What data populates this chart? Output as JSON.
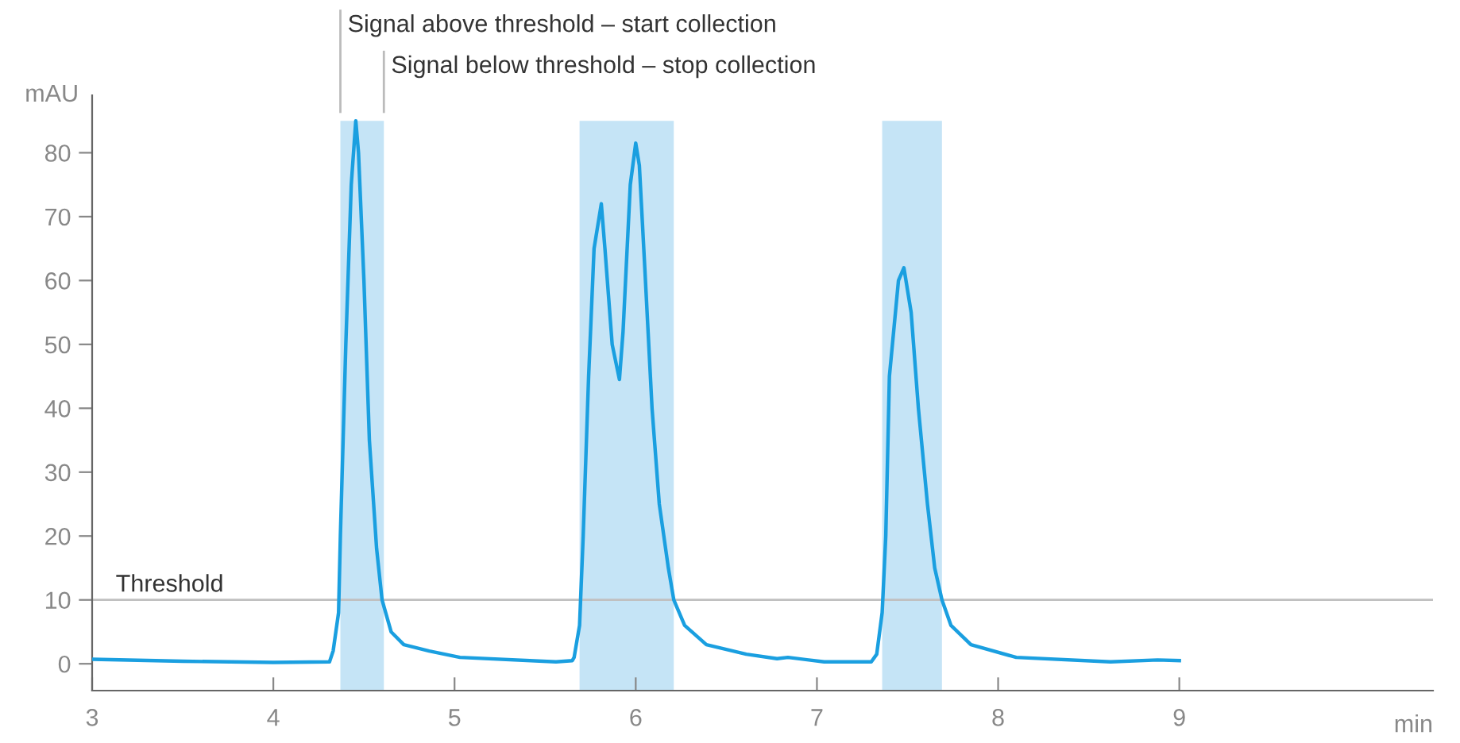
{
  "chart_data": {
    "type": "line",
    "xlabel": "min",
    "ylabel": "mAU",
    "x": [
      3.0,
      3.5,
      4.0,
      4.31,
      4.33,
      4.36,
      4.37,
      4.4,
      4.43,
      4.455,
      4.47,
      4.5,
      4.53,
      4.57,
      4.6,
      4.65,
      4.72,
      4.86,
      5.03,
      5.56,
      5.65,
      5.66,
      5.69,
      5.71,
      5.74,
      5.77,
      5.81,
      5.83,
      5.87,
      5.91,
      5.93,
      5.97,
      6.0,
      6.02,
      6.05,
      6.09,
      6.13,
      6.18,
      6.21,
      6.27,
      6.39,
      6.61,
      6.78,
      6.84,
      7.04,
      7.3,
      7.33,
      7.36,
      7.38,
      7.4,
      7.45,
      7.48,
      7.52,
      7.56,
      7.61,
      7.65,
      7.69,
      7.74,
      7.85,
      8.1,
      8.62,
      8.88,
      9.0
    ],
    "series": [
      {
        "color": "#1a9fe0",
        "values": [
          0.7,
          0.4,
          0.2,
          0.3,
          2,
          8,
          20,
          50,
          75,
          85,
          80,
          60,
          35,
          18,
          10,
          5,
          3,
          2,
          1,
          0.3,
          0.5,
          1,
          6,
          20,
          45,
          65,
          72,
          65,
          50,
          44.5,
          52,
          75,
          81.5,
          78,
          62,
          40,
          25,
          15,
          10,
          6,
          3,
          1.5,
          0.8,
          1,
          0.3,
          0.3,
          1.5,
          8,
          20,
          45,
          60,
          62,
          55,
          40,
          25,
          15,
          10,
          6,
          3,
          1,
          0.3,
          0.6,
          0.5
        ]
      }
    ],
    "xlim": [
      3,
      10.4
    ],
    "xticks": [
      3,
      4,
      5,
      6,
      7,
      8,
      9
    ],
    "ylim": [
      -4.2,
      89
    ],
    "yticks": [
      0,
      10,
      20,
      30,
      40,
      50,
      60,
      70,
      80
    ],
    "ref_lines": [
      {
        "axis": "y",
        "value": 10,
        "label": "Threshold",
        "color": "#c0c0c0"
      }
    ],
    "bands": [
      {
        "axis": "x",
        "from": 4.37,
        "to": 4.61,
        "color": "#c5e4f6"
      },
      {
        "axis": "x",
        "from": 5.69,
        "to": 6.21,
        "color": "#c5e4f6"
      },
      {
        "axis": "x",
        "from": 7.36,
        "to": 7.69,
        "color": "#c5e4f6"
      }
    ],
    "annotations": [
      "Signal above threshold – start collection",
      "Signal below threshold – stop collection"
    ],
    "grid": false,
    "legend": false,
    "marker": "none",
    "line_style": "solid"
  }
}
